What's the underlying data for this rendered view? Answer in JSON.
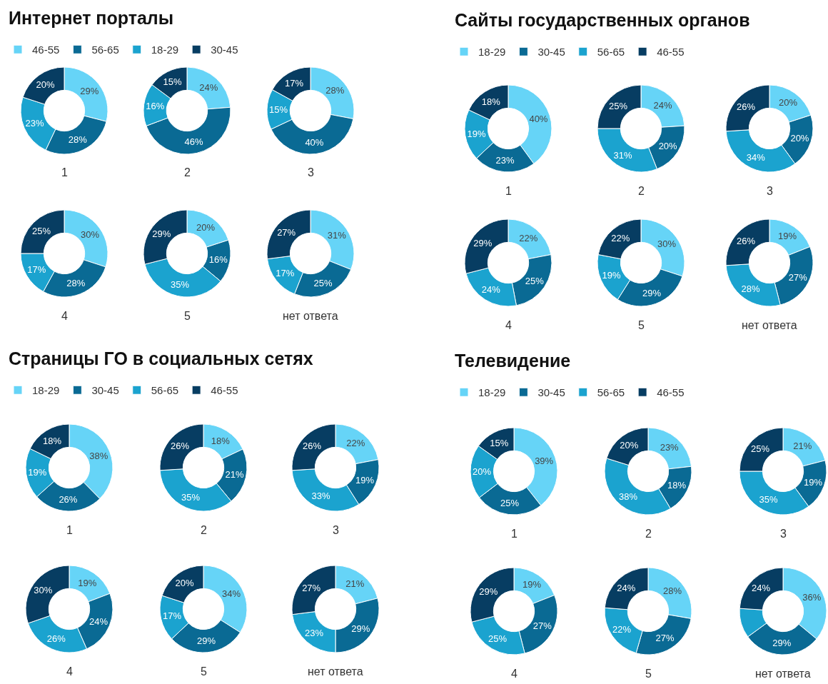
{
  "chart_data": [
    {
      "type": "donut",
      "title": "Интернет порталы",
      "legend": "top",
      "categories": [
        "46-55",
        "56-65",
        "18-29",
        "30-45"
      ],
      "colors": [
        "#66d4f7",
        "#0a6a94",
        "#1ba3cf",
        "#073d62"
      ],
      "series": [
        {
          "name": "1",
          "values": [
            29,
            28,
            23,
            20
          ],
          "value_labels": [
            "29%",
            "28%",
            "23%",
            "20%"
          ]
        },
        {
          "name": "2",
          "values": [
            24,
            46,
            16,
            15
          ],
          "value_labels": [
            "24%",
            "46%",
            "16%",
            "15%"
          ]
        },
        {
          "name": "3",
          "values": [
            28,
            40,
            15,
            17
          ],
          "value_labels": [
            "28%",
            "40%",
            "15%",
            "17%"
          ]
        },
        {
          "name": "4",
          "values": [
            30,
            28,
            17,
            25
          ],
          "value_labels": [
            "30%",
            "28%",
            "17%",
            "25%"
          ]
        },
        {
          "name": "5",
          "values": [
            20,
            16,
            35,
            29
          ],
          "value_labels": [
            "20%",
            "16%",
            "35%",
            "29%"
          ]
        },
        {
          "name": "нет ответа",
          "values": [
            31,
            25,
            17,
            27
          ],
          "value_labels": [
            "31%",
            "25%",
            "17%",
            "27%"
          ]
        }
      ]
    },
    {
      "type": "donut",
      "title": "Сайты государственных органов",
      "legend": "top",
      "categories": [
        "18-29",
        "30-45",
        "56-65",
        "46-55"
      ],
      "colors": [
        "#66d4f7",
        "#0a6a94",
        "#1ba3cf",
        "#073d62"
      ],
      "series": [
        {
          "name": "1",
          "values": [
            40,
            23,
            19,
            18
          ],
          "value_labels": [
            "40%",
            "23%",
            "19%",
            "18%"
          ]
        },
        {
          "name": "2",
          "values": [
            24,
            20,
            31,
            25
          ],
          "value_labels": [
            "24%",
            "20%",
            "31%",
            "25%"
          ]
        },
        {
          "name": "3",
          "values": [
            20,
            20,
            34,
            26
          ],
          "value_labels": [
            "20%",
            "20%",
            "34%",
            "26%"
          ]
        },
        {
          "name": "4",
          "values": [
            22,
            25,
            24,
            29
          ],
          "value_labels": [
            "22%",
            "25%",
            "24%",
            "29%"
          ]
        },
        {
          "name": "5",
          "values": [
            30,
            29,
            19,
            22
          ],
          "value_labels": [
            "30%",
            "29%",
            "19%",
            "22%"
          ]
        },
        {
          "name": "нет ответа",
          "values": [
            19,
            27,
            28,
            26
          ],
          "value_labels": [
            "19%",
            "27%",
            "28%",
            "26%"
          ]
        }
      ]
    },
    {
      "type": "donut",
      "title": "Страницы ГО в социальных сетях",
      "legend": "top",
      "categories": [
        "18-29",
        "30-45",
        "56-65",
        "46-55"
      ],
      "colors": [
        "#66d4f7",
        "#0a6a94",
        "#1ba3cf",
        "#073d62"
      ],
      "series": [
        {
          "name": "1",
          "values": [
            38,
            26,
            19,
            18
          ],
          "value_labels": [
            "38%",
            "26%",
            "19%",
            "18%"
          ]
        },
        {
          "name": "2",
          "values": [
            18,
            21,
            35,
            26
          ],
          "value_labels": [
            "18%",
            "21%",
            "35%",
            "26%"
          ]
        },
        {
          "name": "3",
          "values": [
            22,
            19,
            33,
            26
          ],
          "value_labels": [
            "22%",
            "19%",
            "33%",
            "26%"
          ]
        },
        {
          "name": "4",
          "values": [
            19,
            24,
            26,
            30
          ],
          "value_labels": [
            "19%",
            "24%",
            "26%",
            "30%"
          ]
        },
        {
          "name": "5",
          "values": [
            34,
            29,
            17,
            20
          ],
          "value_labels": [
            "34%",
            "29%",
            "17%",
            "20%"
          ]
        },
        {
          "name": "нет ответа",
          "values": [
            21,
            29,
            23,
            27
          ],
          "value_labels": [
            "21%",
            "29%",
            "23%",
            "27%"
          ]
        }
      ]
    },
    {
      "type": "donut",
      "title": "Телевидение",
      "legend": "top",
      "categories": [
        "18-29",
        "30-45",
        "56-65",
        "46-55"
      ],
      "colors": [
        "#66d4f7",
        "#0a6a94",
        "#1ba3cf",
        "#073d62"
      ],
      "series": [
        {
          "name": "1",
          "values": [
            39,
            25,
            20,
            15
          ],
          "value_labels": [
            "39%",
            "25%",
            "20%",
            "15%"
          ]
        },
        {
          "name": "2",
          "values": [
            23,
            18,
            38,
            20
          ],
          "value_labels": [
            "23%",
            "18%",
            "38%",
            "20%"
          ]
        },
        {
          "name": "3",
          "values": [
            21,
            19,
            35,
            25
          ],
          "value_labels": [
            "21%",
            "19%",
            "35%",
            "25%"
          ]
        },
        {
          "name": "4",
          "values": [
            19,
            27,
            25,
            29
          ],
          "value_labels": [
            "19%",
            "27%",
            "25%",
            "29%"
          ]
        },
        {
          "name": "5",
          "values": [
            28,
            27,
            22,
            24
          ],
          "value_labels": [
            "28%",
            "27%",
            "22%",
            "24%"
          ]
        },
        {
          "name": "нет ответа",
          "values": [
            36,
            29,
            11,
            24
          ],
          "value_labels": [
            "36%",
            "29%",
            null,
            "24%"
          ]
        }
      ]
    }
  ]
}
